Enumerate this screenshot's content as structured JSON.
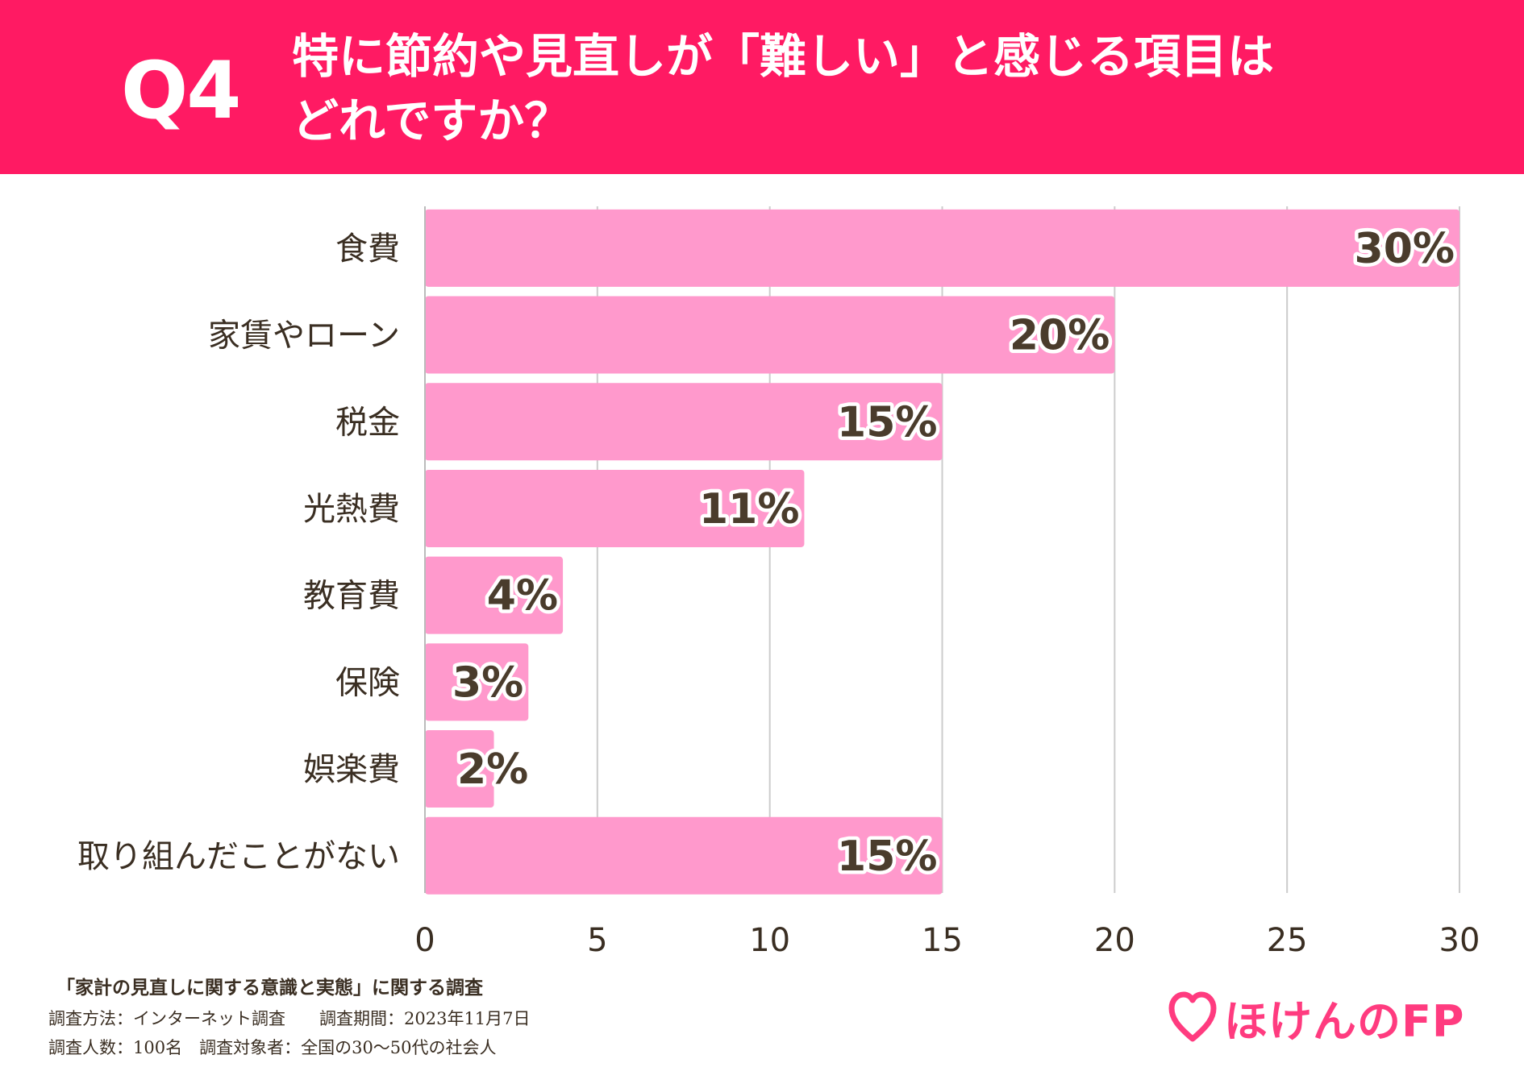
{
  "header": {
    "q_number": "Q4",
    "question_line1": "特に節約や見直しが「難しい」と感じる項目は",
    "question_line2": "どれですか？"
  },
  "chart_data": {
    "type": "bar",
    "orientation": "horizontal",
    "categories": [
      "食費",
      "家賃やローン",
      "税金",
      "光熱費",
      "教育費",
      "保険",
      "娯楽費",
      "取り組んだことがない"
    ],
    "values": [
      30,
      20,
      15,
      11,
      4,
      3,
      2,
      15
    ],
    "data_labels": [
      "30%",
      "20%",
      "15%",
      "11%",
      "4%",
      "3%",
      "2%",
      "15%"
    ],
    "xlim": [
      0,
      30
    ],
    "x_ticks": [
      "0",
      "5",
      "10",
      "15",
      "20",
      "25",
      "30"
    ],
    "grid": true,
    "bar_color": "#ff99cc",
    "label_color": "#4a3c2c"
  },
  "footer": {
    "survey_title": "「家計の見直しに関する意識と実態」に関する調査",
    "method_line": "調査方法：インターネット調査　　調査期間：2023年11月7日",
    "target_line": "調査人数：100名　調査対象者：全国の30〜50代の社会人"
  },
  "logo": {
    "text": "ほけんのFP",
    "icon": "heart-icon",
    "color": "#ff3b7f"
  },
  "colors": {
    "header_bg": "#ff1a63",
    "header_text": "#ffffff",
    "text": "#3a2e22",
    "grid": "#cccccc"
  }
}
